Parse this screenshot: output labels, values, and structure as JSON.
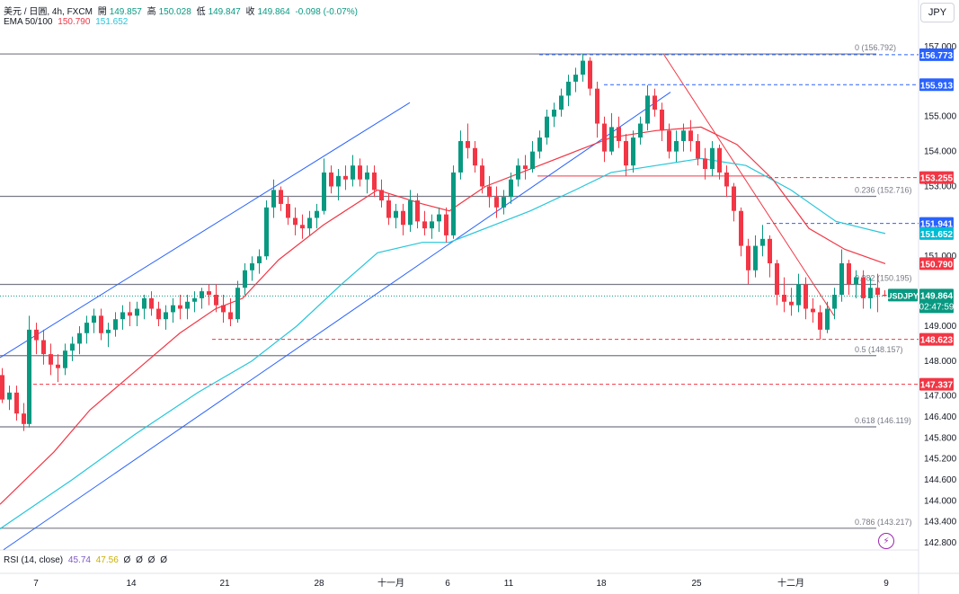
{
  "header": {
    "symbol": "美元 / 日圓, 4h, FXCM",
    "open_label": "開",
    "open": "149.857",
    "high_label": "高",
    "high": "150.028",
    "low_label": "低",
    "low": "149.847",
    "close_label": "收",
    "close": "149.864",
    "change": "-0.098 (-0.07%)",
    "ema_label": "EMA 50/100",
    "ema50": "150.790",
    "ema100": "151.652",
    "rsi_label": "RSI (14, close)",
    "rsi_value": "45.74",
    "rsi_ma": "47.56",
    "rsi_extra": [
      "Ø",
      "Ø",
      "Ø",
      "Ø"
    ]
  },
  "currency_button": "JPY",
  "chart_data": {
    "type": "candlestick",
    "title": "美元 / 日圓, 4h, FXCM",
    "x_ticks": [
      "7",
      "14",
      "21",
      "28",
      "十一月",
      "6",
      "11",
      "18",
      "25",
      "十二月",
      "9"
    ],
    "y_ticks": [
      157.0,
      155.0,
      154.0,
      153.0,
      151.0,
      149.0,
      148.0,
      147.0,
      146.4,
      145.8,
      145.2,
      144.6,
      144.0,
      143.4,
      142.8
    ],
    "ylim": [
      142.6,
      157.6
    ],
    "price_tags": [
      {
        "label": "156.773",
        "color": "#2962ff"
      },
      {
        "label": "155.913",
        "color": "#2962ff"
      },
      {
        "label": "153.255",
        "color": "#f23645"
      },
      {
        "label": "151.941",
        "color": "#2962ff"
      },
      {
        "label": "151.652",
        "color": "#00bcd4"
      },
      {
        "label": "150.790",
        "color": "#f23645"
      },
      {
        "label": "USDJPY",
        "color": "#089981"
      },
      {
        "label": "149.864",
        "color": "#089981"
      },
      {
        "label": "02:47:59",
        "color": "#089981"
      },
      {
        "label": "148.623",
        "color": "#f23645"
      },
      {
        "label": "147.337",
        "color": "#f23645"
      }
    ],
    "fib_levels": [
      {
        "ratio": "0",
        "text": "0 (156.792)",
        "value": 156.792
      },
      {
        "ratio": "0.236",
        "text": "0.236 (152.716)",
        "value": 152.716
      },
      {
        "ratio": "0.382",
        "text": "0.382 (150.195)",
        "value": 150.195
      },
      {
        "ratio": "0.5",
        "text": "0.5 (148.157)",
        "value": 148.157
      },
      {
        "ratio": "0.618",
        "text": "0.618 (146.119)",
        "value": 146.119
      },
      {
        "ratio": "0.786",
        "text": "0.786 (143.217)",
        "value": 143.217
      }
    ],
    "dashed_levels": [
      {
        "value": 156.773,
        "color": "#2962ff"
      },
      {
        "value": 155.913,
        "color": "#2962ff"
      },
      {
        "value": 153.255,
        "color": "#f23645"
      },
      {
        "value": 151.941,
        "color": "#2962ff"
      },
      {
        "value": 148.623,
        "color": "#f23645"
      },
      {
        "value": 147.337,
        "color": "#f23645"
      }
    ],
    "last_price": 149.864,
    "ema50_series_color": "#f23645",
    "ema100_series_color": "#26c6da",
    "ema50_series": [
      [
        0,
        143.9
      ],
      [
        60,
        145.4
      ],
      [
        100,
        146.6
      ],
      [
        150,
        147.7
      ],
      [
        200,
        148.8
      ],
      [
        240,
        149.5
      ],
      [
        270,
        149.8
      ],
      [
        310,
        150.9
      ],
      [
        360,
        151.9
      ],
      [
        420,
        152.9
      ],
      [
        470,
        152.5
      ],
      [
        500,
        152.3
      ],
      [
        540,
        153.0
      ],
      [
        600,
        153.6
      ],
      [
        640,
        154.0
      ],
      [
        680,
        154.4
      ],
      [
        730,
        154.6
      ],
      [
        780,
        154.7
      ],
      [
        820,
        154.2
      ],
      [
        860,
        153.2
      ],
      [
        900,
        151.8
      ],
      [
        940,
        151.2
      ],
      [
        985,
        150.79
      ]
    ],
    "ema100_series": [
      [
        0,
        143.2
      ],
      [
        80,
        144.6
      ],
      [
        150,
        145.9
      ],
      [
        220,
        147.1
      ],
      [
        280,
        148.0
      ],
      [
        330,
        149.0
      ],
      [
        380,
        150.2
      ],
      [
        420,
        151.1
      ],
      [
        470,
        151.4
      ],
      [
        500,
        151.4
      ],
      [
        540,
        151.8
      ],
      [
        590,
        152.3
      ],
      [
        640,
        152.9
      ],
      [
        680,
        153.4
      ],
      [
        730,
        153.6
      ],
      [
        780,
        153.8
      ],
      [
        830,
        153.6
      ],
      [
        880,
        152.9
      ],
      [
        930,
        152.0
      ],
      [
        985,
        151.652
      ]
    ],
    "candles": [
      [
        0,
        147.6,
        147.8,
        146.8,
        146.9
      ],
      [
        8,
        146.9,
        147.3,
        146.6,
        147.1
      ],
      [
        16,
        147.1,
        147.3,
        146.3,
        146.5
      ],
      [
        24,
        146.5,
        146.8,
        146.0,
        146.2
      ],
      [
        30,
        146.2,
        149.3,
        146.1,
        148.9
      ],
      [
        38,
        148.9,
        149.1,
        148.2,
        148.6
      ],
      [
        46,
        148.6,
        148.9,
        147.9,
        148.2
      ],
      [
        54,
        148.2,
        148.5,
        147.6,
        147.9
      ],
      [
        62,
        147.9,
        148.2,
        147.4,
        147.8
      ],
      [
        70,
        147.8,
        148.5,
        147.6,
        148.3
      ],
      [
        78,
        148.3,
        148.7,
        148.0,
        148.5
      ],
      [
        86,
        148.5,
        149.0,
        148.2,
        148.8
      ],
      [
        94,
        148.8,
        149.3,
        148.5,
        149.1
      ],
      [
        102,
        149.1,
        149.5,
        148.8,
        149.3
      ],
      [
        110,
        149.3,
        149.5,
        148.6,
        148.8
      ],
      [
        118,
        148.8,
        149.1,
        148.4,
        148.9
      ],
      [
        126,
        148.9,
        149.4,
        148.7,
        149.2
      ],
      [
        134,
        149.2,
        149.6,
        148.9,
        149.4
      ],
      [
        142,
        149.4,
        149.7,
        149.0,
        149.3
      ],
      [
        150,
        149.3,
        149.7,
        149.0,
        149.5
      ],
      [
        158,
        149.5,
        149.9,
        149.2,
        149.8
      ],
      [
        166,
        149.8,
        150.0,
        149.3,
        149.5
      ],
      [
        174,
        149.5,
        149.7,
        149.0,
        149.2
      ],
      [
        182,
        149.2,
        149.6,
        148.9,
        149.4
      ],
      [
        190,
        149.4,
        149.8,
        149.1,
        149.6
      ],
      [
        198,
        149.6,
        149.9,
        149.2,
        149.5
      ],
      [
        206,
        149.5,
        149.9,
        149.2,
        149.7
      ],
      [
        214,
        149.7,
        150.0,
        149.4,
        149.8
      ],
      [
        222,
        149.8,
        150.1,
        149.5,
        150.0
      ],
      [
        230,
        150.0,
        150.2,
        149.6,
        149.9
      ],
      [
        238,
        149.9,
        150.2,
        149.4,
        149.6
      ],
      [
        246,
        149.6,
        149.9,
        149.1,
        149.4
      ],
      [
        254,
        149.4,
        149.8,
        149.0,
        149.2
      ],
      [
        262,
        149.2,
        150.3,
        149.1,
        150.1
      ],
      [
        270,
        150.1,
        150.8,
        149.9,
        150.6
      ],
      [
        278,
        150.6,
        151.0,
        150.3,
        150.8
      ],
      [
        286,
        150.8,
        151.2,
        150.5,
        151.0
      ],
      [
        294,
        151.0,
        152.6,
        150.9,
        152.4
      ],
      [
        302,
        152.4,
        153.2,
        152.1,
        152.9
      ],
      [
        310,
        152.9,
        153.0,
        152.3,
        152.5
      ],
      [
        318,
        152.5,
        152.7,
        151.9,
        152.1
      ],
      [
        326,
        152.1,
        152.4,
        151.6,
        151.9
      ],
      [
        334,
        151.9,
        152.2,
        151.5,
        151.8
      ],
      [
        342,
        151.8,
        152.3,
        151.6,
        152.1
      ],
      [
        350,
        152.1,
        152.5,
        151.8,
        152.3
      ],
      [
        358,
        152.3,
        153.8,
        152.2,
        153.4
      ],
      [
        366,
        153.4,
        153.6,
        152.8,
        153.0
      ],
      [
        374,
        153.0,
        153.5,
        152.6,
        153.3
      ],
      [
        382,
        153.3,
        153.6,
        152.9,
        153.2
      ],
      [
        390,
        153.2,
        153.9,
        153.0,
        153.6
      ],
      [
        398,
        153.6,
        153.8,
        153.0,
        153.2
      ],
      [
        406,
        153.2,
        153.6,
        152.8,
        153.4
      ],
      [
        414,
        153.4,
        153.6,
        152.7,
        152.9
      ],
      [
        422,
        152.9,
        153.2,
        152.4,
        152.6
      ],
      [
        430,
        152.6,
        152.8,
        151.9,
        152.1
      ],
      [
        438,
        152.1,
        152.5,
        151.8,
        152.3
      ],
      [
        446,
        152.3,
        152.5,
        151.6,
        151.9
      ],
      [
        454,
        151.9,
        152.9,
        151.7,
        152.6
      ],
      [
        462,
        152.6,
        152.8,
        151.8,
        152.0
      ],
      [
        470,
        152.0,
        152.3,
        151.6,
        151.8
      ],
      [
        478,
        151.8,
        152.2,
        151.5,
        152.0
      ],
      [
        486,
        152.0,
        152.4,
        151.7,
        152.2
      ],
      [
        494,
        152.2,
        152.4,
        151.4,
        151.6
      ],
      [
        502,
        151.6,
        153.6,
        151.5,
        153.4
      ],
      [
        510,
        153.4,
        154.6,
        153.2,
        154.3
      ],
      [
        518,
        154.3,
        154.8,
        153.8,
        154.1
      ],
      [
        526,
        154.1,
        154.3,
        153.4,
        153.6
      ],
      [
        534,
        153.6,
        153.8,
        152.8,
        153.0
      ],
      [
        542,
        153.0,
        153.3,
        152.4,
        152.7
      ],
      [
        550,
        152.7,
        153.0,
        152.1,
        152.4
      ],
      [
        558,
        152.4,
        152.9,
        152.2,
        152.7
      ],
      [
        566,
        152.7,
        153.4,
        152.5,
        153.2
      ],
      [
        574,
        153.2,
        153.8,
        153.0,
        153.6
      ],
      [
        582,
        153.6,
        153.9,
        153.2,
        153.5
      ],
      [
        590,
        153.5,
        154.3,
        153.4,
        154.0
      ],
      [
        598,
        154.0,
        154.6,
        153.8,
        154.4
      ],
      [
        606,
        154.4,
        155.2,
        154.2,
        155.0
      ],
      [
        614,
        155.0,
        155.4,
        154.7,
        155.2
      ],
      [
        622,
        155.2,
        155.8,
        155.0,
        155.6
      ],
      [
        630,
        155.6,
        156.2,
        155.3,
        156.0
      ],
      [
        638,
        156.0,
        156.4,
        155.7,
        156.2
      ],
      [
        646,
        156.2,
        156.79,
        156.0,
        156.6
      ],
      [
        654,
        156.6,
        156.7,
        155.6,
        155.8
      ],
      [
        662,
        155.8,
        156.0,
        154.4,
        154.8
      ],
      [
        670,
        154.8,
        155.0,
        153.7,
        154.0
      ],
      [
        678,
        154.0,
        155.1,
        153.9,
        154.7
      ],
      [
        686,
        154.7,
        155.0,
        154.1,
        154.3
      ],
      [
        694,
        154.3,
        154.5,
        153.3,
        153.6
      ],
      [
        702,
        153.6,
        154.6,
        153.4,
        154.4
      ],
      [
        710,
        154.4,
        155.0,
        154.2,
        154.8
      ],
      [
        718,
        154.8,
        155.9,
        154.6,
        155.6
      ],
      [
        726,
        155.6,
        155.8,
        155.0,
        155.2
      ],
      [
        734,
        155.2,
        155.4,
        154.3,
        154.6
      ],
      [
        742,
        154.6,
        154.8,
        153.8,
        154.0
      ],
      [
        750,
        154.0,
        154.6,
        153.7,
        154.3
      ],
      [
        758,
        154.3,
        154.8,
        154.0,
        154.6
      ],
      [
        766,
        154.6,
        154.9,
        154.0,
        154.3
      ],
      [
        774,
        154.3,
        154.5,
        153.6,
        153.8
      ],
      [
        782,
        153.8,
        154.1,
        153.2,
        153.5
      ],
      [
        790,
        153.5,
        154.3,
        153.3,
        154.1
      ],
      [
        798,
        154.1,
        154.2,
        153.2,
        153.4
      ],
      [
        806,
        153.4,
        153.6,
        152.7,
        153.0
      ],
      [
        814,
        153.0,
        153.1,
        152.0,
        152.3
      ],
      [
        822,
        152.3,
        152.4,
        151.0,
        151.3
      ],
      [
        830,
        151.3,
        151.5,
        150.2,
        150.6
      ],
      [
        838,
        150.6,
        151.6,
        150.4,
        151.3
      ],
      [
        846,
        151.3,
        151.9,
        151.0,
        151.5
      ],
      [
        854,
        151.5,
        151.6,
        150.4,
        150.8
      ],
      [
        862,
        150.8,
        150.9,
        149.6,
        149.9
      ],
      [
        870,
        149.9,
        150.4,
        149.4,
        149.7
      ],
      [
        878,
        149.7,
        150.1,
        149.3,
        149.6
      ],
      [
        886,
        149.6,
        150.5,
        149.4,
        150.2
      ],
      [
        894,
        150.2,
        150.4,
        149.2,
        149.5
      ],
      [
        902,
        149.5,
        149.8,
        149.1,
        149.4
      ],
      [
        910,
        149.4,
        149.6,
        148.62,
        148.9
      ],
      [
        918,
        148.9,
        149.7,
        148.8,
        149.5
      ],
      [
        926,
        149.5,
        150.1,
        149.2,
        149.9
      ],
      [
        934,
        149.9,
        151.2,
        149.7,
        150.8
      ],
      [
        942,
        150.8,
        150.9,
        149.9,
        150.2
      ],
      [
        950,
        150.2,
        150.6,
        149.8,
        150.4
      ],
      [
        958,
        150.4,
        150.6,
        149.5,
        149.8
      ],
      [
        966,
        149.8,
        150.4,
        149.5,
        150.1
      ],
      [
        974,
        150.1,
        150.5,
        149.4,
        149.9
      ],
      [
        982,
        149.9,
        150.03,
        149.85,
        149.864
      ]
    ]
  }
}
